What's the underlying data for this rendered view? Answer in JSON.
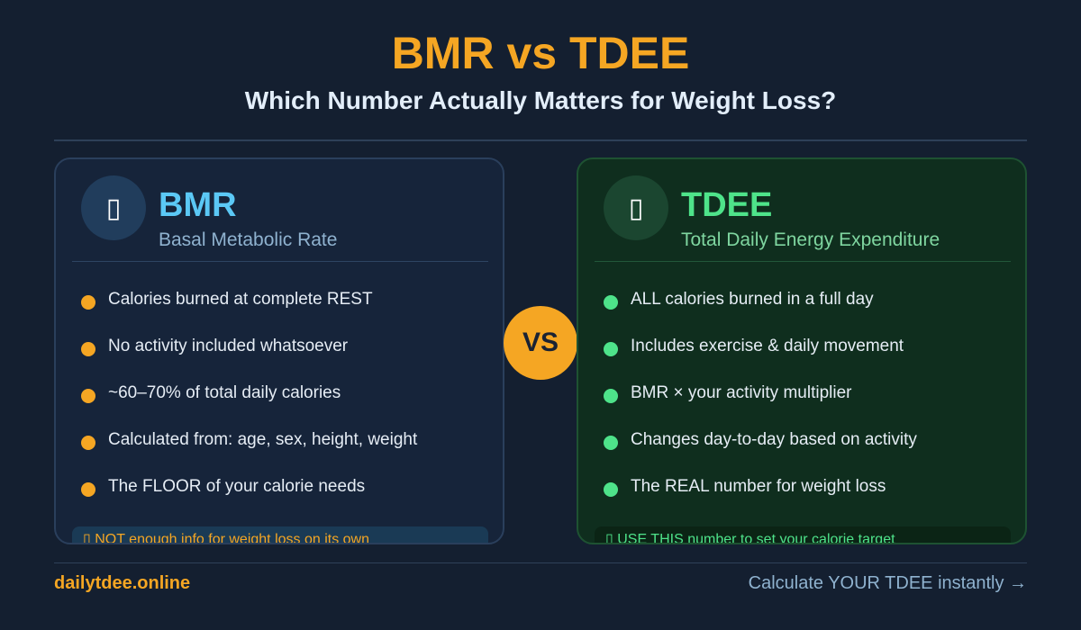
{
  "header": {
    "title": "BMR vs TDEE",
    "subtitle": "Which Number Actually Matters for Weight Loss?"
  },
  "bmr": {
    "icon": "person-resting-icon",
    "icon_glyph": "▯",
    "name": "BMR",
    "full_name": "Basal Metabolic Rate",
    "bullets": [
      "Calories burned at complete REST",
      "No activity included whatsoever",
      "~60–70% of total daily calories",
      "Calculated from: age, sex, height, weight",
      "The FLOOR of your calorie needs"
    ],
    "note": "▯ NOT enough info for weight loss on its own",
    "accent_color": "#5bc8f5",
    "bullet_color": "#f5a623"
  },
  "vs_label": "VS",
  "tdee": {
    "icon": "person-running-icon",
    "icon_glyph": "▯",
    "name": "TDEE",
    "full_name": "Total Daily Energy Expenditure",
    "bullets": [
      "ALL calories burned in a full day",
      "Includes exercise & daily movement",
      "BMR × your activity multiplier",
      "Changes day-to-day based on activity",
      "The REAL number for weight loss"
    ],
    "note": "▯ USE THIS number to set your calorie target",
    "accent_color": "#4ee38a",
    "bullet_color": "#4ee38a"
  },
  "footer": {
    "site": "dailytdee.online",
    "cta": "Calculate YOUR TDEE instantly →"
  },
  "colors": {
    "background": "#141f30",
    "title": "#f5a623",
    "vs_badge": "#f5a623"
  }
}
